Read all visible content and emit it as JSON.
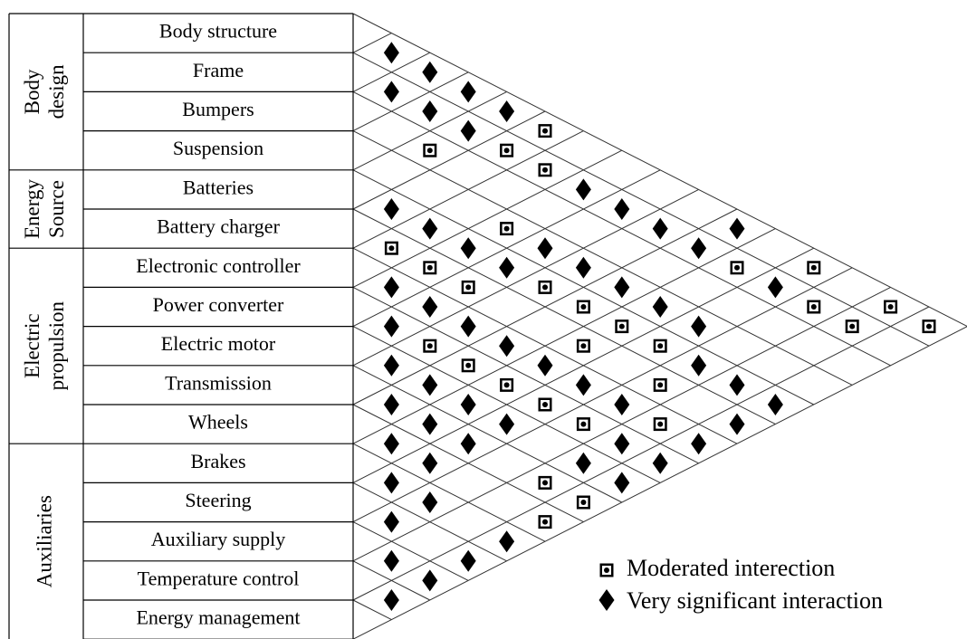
{
  "groups": [
    {
      "lines": [
        "Body",
        "design"
      ],
      "rows": [
        "Body structure",
        "Frame",
        "Bumpers",
        "Suspension"
      ]
    },
    {
      "lines": [
        "Energy",
        "Source"
      ],
      "rows": [
        "Batteries",
        "Battery charger"
      ]
    },
    {
      "lines": [
        "Electric",
        "propulsion"
      ],
      "rows": [
        "Electronic controller",
        "Power converter",
        "Electric motor",
        "Transmission",
        "Wheels"
      ]
    },
    {
      "lines": [
        "Auxiliaries"
      ],
      "rows": [
        "Brakes",
        "Steering",
        "Auxiliary supply",
        "Temperature control",
        "Energy management"
      ]
    }
  ],
  "legend": [
    {
      "label": "Moderated interection",
      "cells": [
        [
          0,
          5
        ],
        [
          2,
          4
        ],
        [
          1,
          5
        ],
        [
          1,
          6
        ],
        [
          3,
          7
        ],
        [
          5,
          6
        ],
        [
          5,
          7
        ],
        [
          1,
          11
        ],
        [
          0,
          12
        ],
        [
          5,
          8
        ],
        [
          4,
          9
        ],
        [
          4,
          10
        ],
        [
          1,
          13
        ],
        [
          0,
          14
        ],
        [
          4,
          11
        ],
        [
          1,
          14
        ],
        [
          0,
          15
        ],
        [
          7,
          9
        ],
        [
          5,
          11
        ],
        [
          4,
          12
        ],
        [
          7,
          10
        ],
        [
          7,
          11
        ],
        [
          5,
          13
        ],
        [
          7,
          12
        ],
        [
          7,
          13
        ],
        [
          6,
          14
        ],
        [
          9,
          14
        ],
        [
          9,
          15
        ],
        [
          10,
          15
        ]
      ]
    },
    {
      "label": "Very significant interaction",
      "cells": [
        [
          0,
          1
        ],
        [
          0,
          2
        ],
        [
          1,
          2
        ],
        [
          0,
          3
        ],
        [
          1,
          3
        ],
        [
          0,
          4
        ],
        [
          1,
          4
        ],
        [
          1,
          7
        ],
        [
          1,
          8
        ],
        [
          4,
          5
        ],
        [
          4,
          6
        ],
        [
          1,
          9
        ],
        [
          0,
          10
        ],
        [
          4,
          7
        ],
        [
          3,
          8
        ],
        [
          1,
          10
        ],
        [
          4,
          8
        ],
        [
          3,
          9
        ],
        [
          6,
          7
        ],
        [
          3,
          10
        ],
        [
          1,
          12
        ],
        [
          6,
          8
        ],
        [
          3,
          11
        ],
        [
          7,
          8
        ],
        [
          6,
          9
        ],
        [
          3,
          12
        ],
        [
          6,
          10
        ],
        [
          8,
          9
        ],
        [
          6,
          11
        ],
        [
          4,
          13
        ],
        [
          8,
          10
        ],
        [
          6,
          12
        ],
        [
          4,
          14
        ],
        [
          9,
          10
        ],
        [
          8,
          11
        ],
        [
          6,
          13
        ],
        [
          4,
          15
        ],
        [
          9,
          11
        ],
        [
          8,
          12
        ],
        [
          5,
          15
        ],
        [
          10,
          11
        ],
        [
          9,
          12
        ],
        [
          7,
          14
        ],
        [
          6,
          15
        ],
        [
          10,
          12
        ],
        [
          8,
          14
        ],
        [
          7,
          15
        ],
        [
          11,
          12
        ],
        [
          8,
          15
        ],
        [
          11,
          13
        ],
        [
          12,
          13
        ],
        [
          11,
          15
        ],
        [
          13,
          14
        ],
        [
          12,
          15
        ],
        [
          13,
          15
        ],
        [
          14,
          15
        ]
      ]
    }
  ]
}
